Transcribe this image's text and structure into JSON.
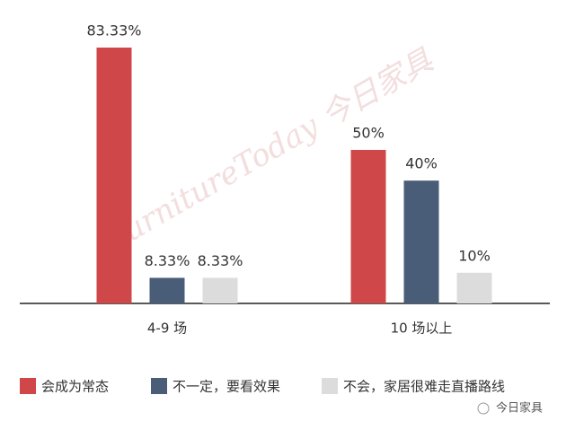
{
  "chart_data": {
    "type": "bar",
    "categories": [
      "4-9 场",
      "10 场以上"
    ],
    "series": [
      {
        "name": "会成为常态",
        "color": "#d0474a",
        "values": [
          83.33,
          50
        ],
        "value_labels": [
          "83.33%",
          "50%"
        ]
      },
      {
        "name": "不一定，要看效果",
        "color": "#4a5d78",
        "values": [
          8.33,
          40
        ],
        "value_labels": [
          "8.33%",
          "40%"
        ]
      },
      {
        "name": "不会，家居很难走直播路线",
        "color": "#dcdcdc",
        "values": [
          8.33,
          10
        ],
        "value_labels": [
          "8.33%",
          "10%"
        ]
      }
    ],
    "legend": "bottom",
    "watermark": "FurnitureToday 今日家具",
    "credit": "今日家具"
  }
}
